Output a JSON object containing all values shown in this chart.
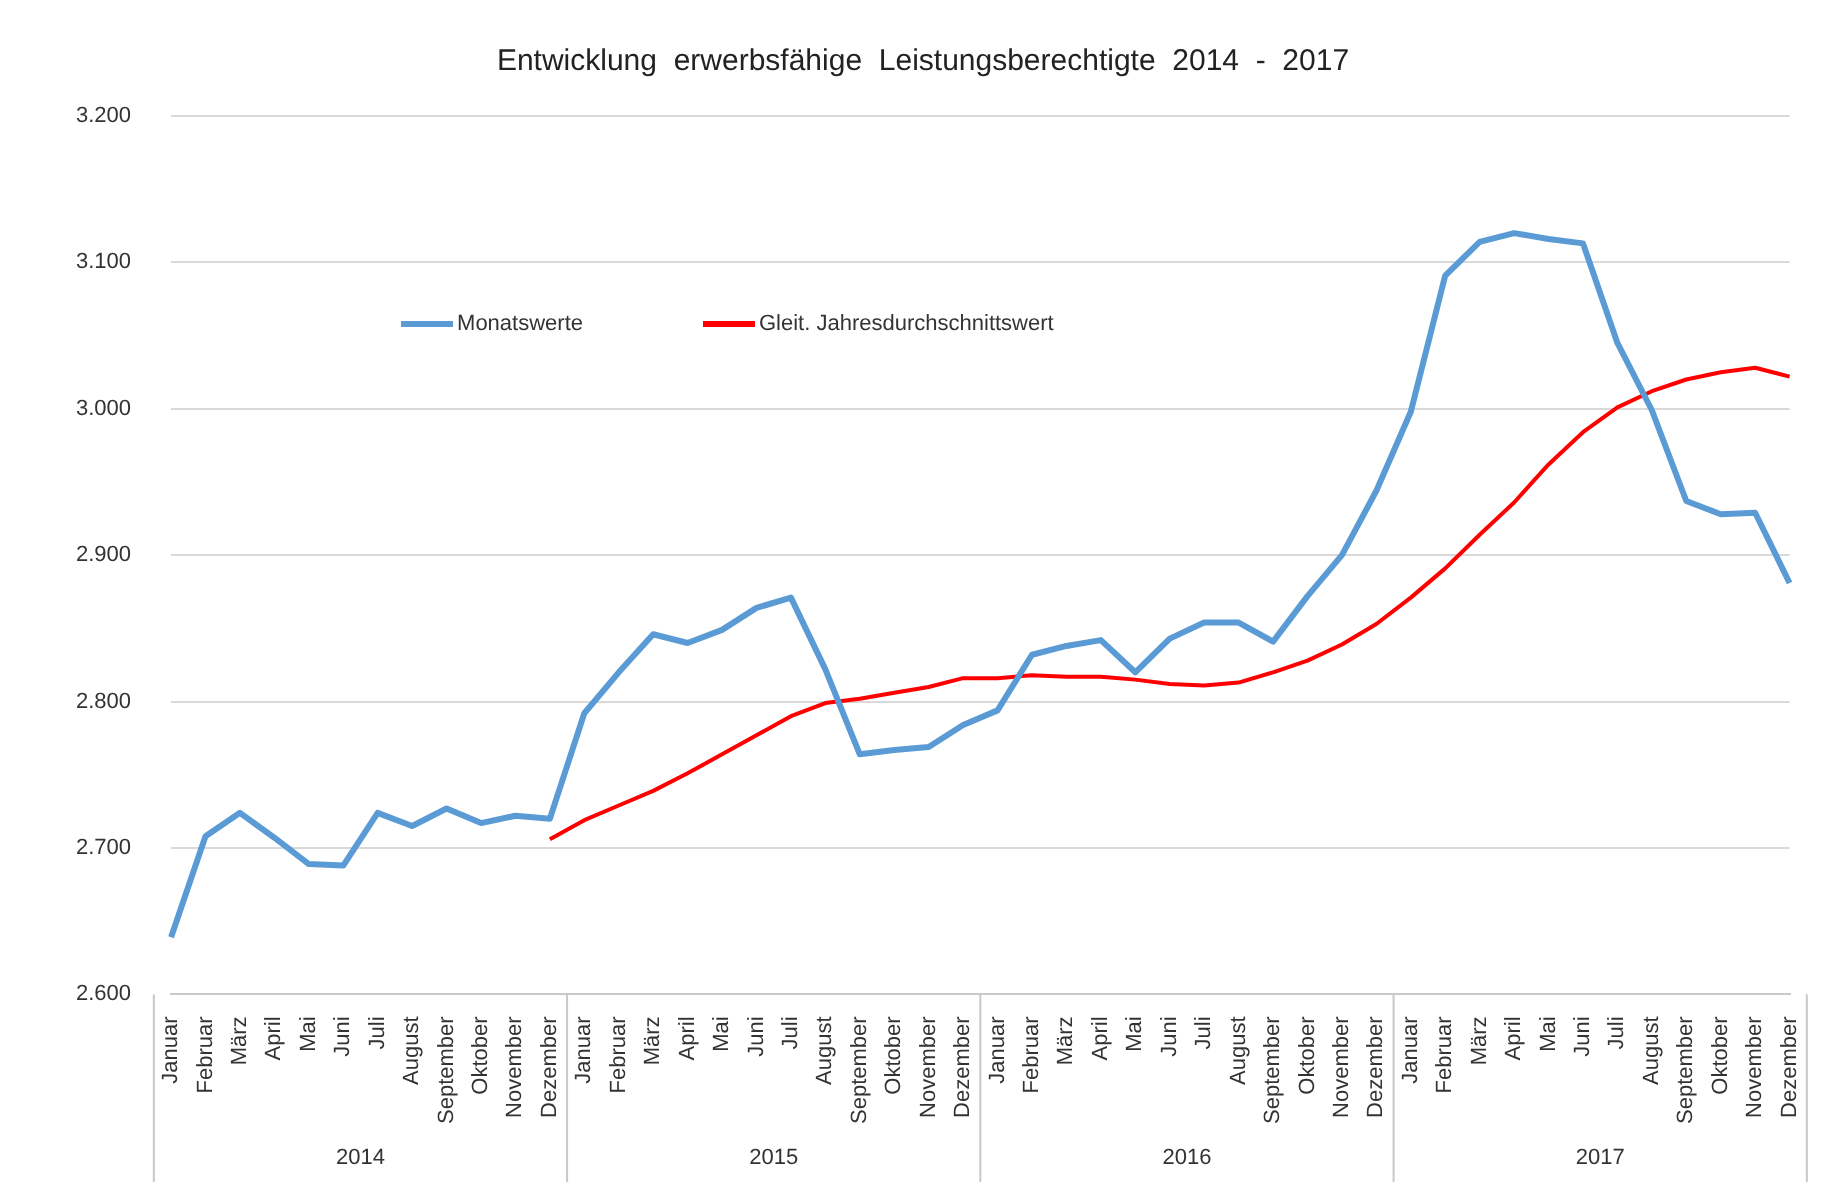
{
  "chart_data": {
    "type": "line",
    "title": "Entwicklung  erwerbsfähige  Leistungsberechtigte  2014  -  2017",
    "categories": [
      "Januar",
      "Februar",
      "März",
      "April",
      "Mai",
      "Juni",
      "Juli",
      "August",
      "September",
      "Oktober",
      "November",
      "Dezember",
      "Januar",
      "Februar",
      "März",
      "April",
      "Mai",
      "Juni",
      "Juli",
      "August",
      "September",
      "Oktober",
      "November",
      "Dezember",
      "Januar",
      "Februar",
      "März",
      "April",
      "Mai",
      "Juni",
      "Juli",
      "August",
      "September",
      "Oktober",
      "November",
      "Dezember",
      "Januar",
      "Februar",
      "März",
      "April",
      "Mai",
      "Juni",
      "Juli",
      "August",
      "September",
      "Oktober",
      "November",
      "Dezember"
    ],
    "annotations": [
      "2014",
      "2015",
      "2016",
      "2017"
    ],
    "series": [
      {
        "name": "Monatswerte",
        "color": "#5b9bd5",
        "values": [
          2639,
          2708,
          2724,
          2707,
          2689,
          2688,
          2724,
          2715,
          2727,
          2717,
          2722,
          2720,
          2792,
          2820,
          2846,
          2840,
          2849,
          2864,
          2871,
          2822,
          2764,
          2767,
          2769,
          2784,
          2794,
          2832,
          2838,
          2842,
          2820,
          2843,
          2854,
          2854,
          2841,
          2872,
          2900,
          2944,
          2998,
          3091,
          3114,
          3120,
          3116,
          3113,
          3045,
          2999,
          2937,
          2928,
          2929,
          2881
        ]
      },
      {
        "name": "Gleit. Jahresdurchschnittswert",
        "color": "#ff0000",
        "values": [
          null,
          null,
          null,
          null,
          null,
          null,
          null,
          null,
          null,
          null,
          null,
          2706,
          2719,
          2729,
          2739,
          2751,
          2764,
          2777,
          2790,
          2799,
          2802,
          2806,
          2810,
          2816,
          2816,
          2818,
          2817,
          2817,
          2815,
          2812,
          2811,
          2813,
          2820,
          2828,
          2839,
          2853,
          2871,
          2891,
          2914,
          2936,
          2962,
          2984,
          3001,
          3012,
          3020,
          3025,
          3028,
          3022
        ]
      }
    ],
    "ylim": [
      2600,
      3200
    ],
    "yticks": [
      {
        "value": 2600,
        "label": "2.600"
      },
      {
        "value": 2700,
        "label": "2.700"
      },
      {
        "value": 2800,
        "label": "2.800"
      },
      {
        "value": 2900,
        "label": "2.900"
      },
      {
        "value": 3000,
        "label": "3.000"
      },
      {
        "value": 3100,
        "label": "3.100"
      },
      {
        "value": 3200,
        "label": "3.200"
      }
    ],
    "grid": "y",
    "legend": "top left",
    "marker": "none",
    "line_style": "solid"
  }
}
